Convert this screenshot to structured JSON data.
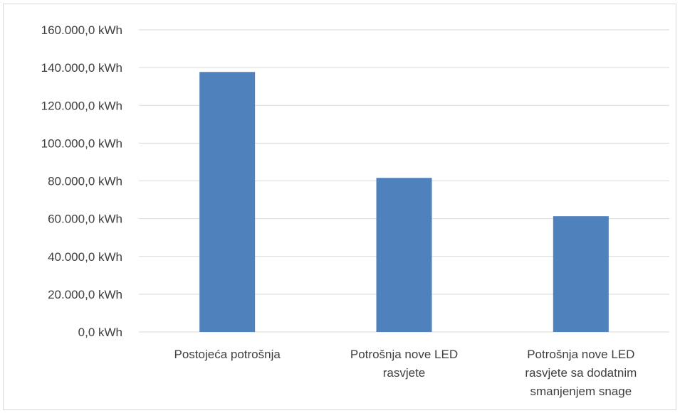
{
  "chart_data": {
    "type": "bar",
    "categories": [
      [
        "Postojeća potrošnja"
      ],
      [
        "Potrošnja nove LED",
        "rasvjete"
      ],
      [
        "Potrošnja nove LED",
        "rasvjete sa dodatnim",
        "smanjenjem snage"
      ]
    ],
    "values": [
      137700,
      81600,
      61300
    ],
    "ylim": [
      0,
      160000
    ],
    "yticks": [
      0,
      20000,
      40000,
      60000,
      80000,
      100000,
      120000,
      140000,
      160000
    ],
    "ytick_labels": [
      "0,0 kWh",
      "20.000,0 kWh",
      "40.000,0 kWh",
      "60.000,0 kWh",
      "80.000,0 kWh",
      "100.000,0 kWh",
      "120.000,0 kWh",
      "140.000,0 kWh",
      "160.000,0 kWh"
    ],
    "grid": true,
    "legend": false,
    "bar_color": "#4f81bd",
    "grid_color": "#d9d9d9"
  }
}
